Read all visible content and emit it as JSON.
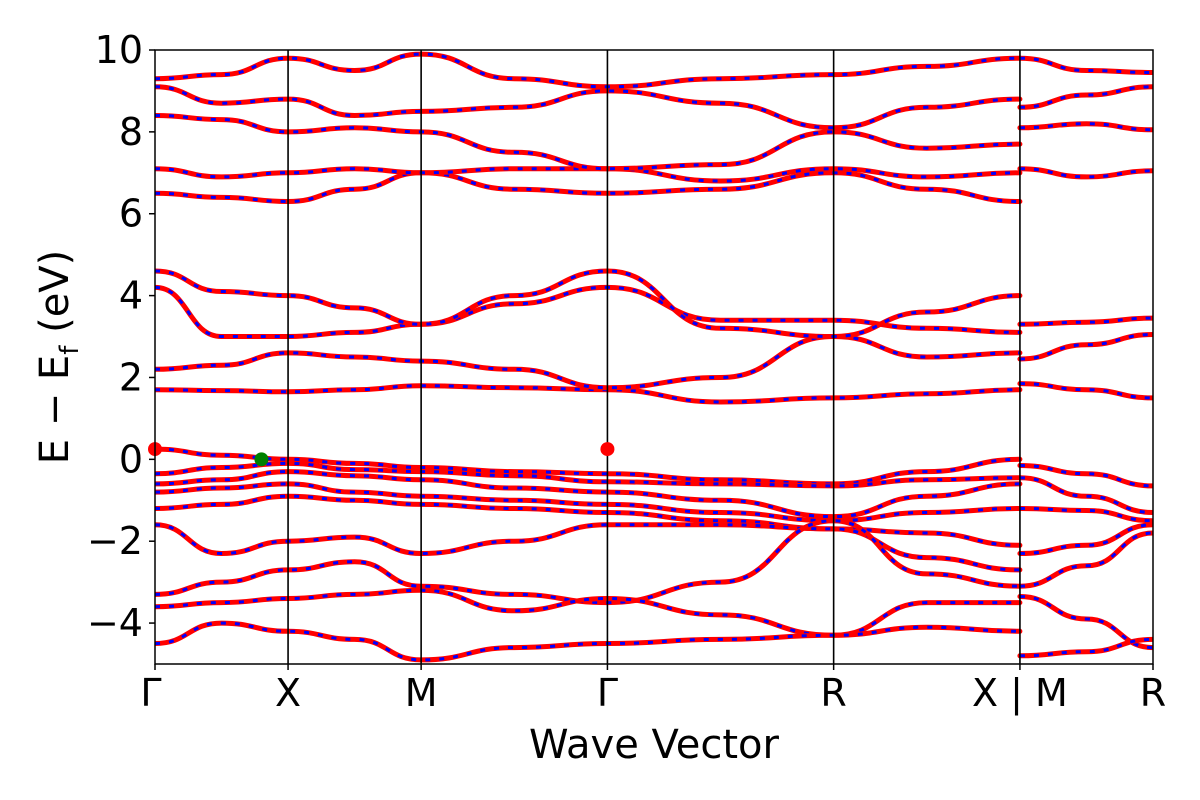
{
  "chart_data": {
    "type": "line",
    "title": "",
    "xlabel": "Wave Vector",
    "ylabel_parts": {
      "main": "E − E",
      "sub": "f",
      "unit": " (eV)"
    },
    "ylim": [
      -5,
      10
    ],
    "yticks": [
      -4,
      -2,
      0,
      2,
      4,
      6,
      8,
      10
    ],
    "ytick_labels": [
      "−4",
      "−2",
      "0",
      "2",
      "4",
      "6",
      "8",
      "10"
    ],
    "xlim": [
      0,
      7.5
    ],
    "kpoints": [
      {
        "label": "Γ",
        "x": 0
      },
      {
        "label": "X",
        "x": 1.0
      },
      {
        "label": "M",
        "x": 2.0
      },
      {
        "label": "Γ",
        "x": 3.4
      },
      {
        "label": "R",
        "x": 5.1
      },
      {
        "label": "X | M",
        "x": 6.5
      },
      {
        "label": "R",
        "x": 7.5
      }
    ],
    "colors": {
      "band_primary": "#ff0000",
      "band_secondary": "#0000ff",
      "vbm": "#008000",
      "cbm": "#ff0000",
      "frame": "#000000"
    },
    "extrema": {
      "vbm": {
        "x": 0.8,
        "y": 0.0
      },
      "cbm": [
        {
          "x": 0.0,
          "y": 0.25
        },
        {
          "x": 3.4,
          "y": 0.25
        }
      ]
    },
    "bands": [
      {
        "x": [
          0,
          0.5,
          1.0,
          1.5,
          2.0,
          2.7,
          3.4,
          4.25,
          5.1,
          5.8,
          6.5
        ],
        "y": [
          0.25,
          0.1,
          0.0,
          -0.1,
          -0.2,
          -0.3,
          -0.35,
          -0.5,
          -0.6,
          -0.3,
          0.0
        ]
      },
      {
        "x": [
          0,
          0.5,
          1.0,
          1.5,
          2.0,
          2.7,
          3.4,
          4.25,
          5.1,
          5.8,
          6.5
        ],
        "y": [
          -0.35,
          -0.2,
          -0.1,
          -0.25,
          -0.3,
          -0.4,
          -0.55,
          -0.6,
          -0.65,
          -0.5,
          -0.45
        ]
      },
      {
        "x": [
          0,
          0.5,
          1.0,
          1.5,
          2.0,
          2.7,
          3.4,
          4.25,
          5.1,
          5.8,
          6.5
        ],
        "y": [
          -0.6,
          -0.5,
          -0.3,
          -0.4,
          -0.5,
          -0.7,
          -0.8,
          -1.0,
          -1.4,
          -0.9,
          -0.6
        ]
      },
      {
        "x": [
          0,
          0.5,
          1.0,
          1.5,
          2.0,
          2.7,
          3.4,
          4.25,
          5.1,
          5.8,
          6.5
        ],
        "y": [
          -0.8,
          -0.7,
          -0.6,
          -0.8,
          -0.9,
          -1.0,
          -1.1,
          -1.3,
          -1.5,
          -1.3,
          -1.2
        ]
      },
      {
        "x": [
          0,
          0.5,
          1.0,
          1.5,
          2.0,
          2.7,
          3.4,
          4.25,
          5.1,
          5.8,
          6.5
        ],
        "y": [
          -1.2,
          -1.1,
          -0.9,
          -1.0,
          -1.1,
          -1.2,
          -1.3,
          -1.5,
          -1.7,
          -1.8,
          -2.1
        ]
      },
      {
        "x": [
          0,
          0.5,
          1.0,
          1.5,
          2.0,
          2.7,
          3.4,
          4.25,
          5.1,
          5.8,
          6.5
        ],
        "y": [
          -1.6,
          -2.3,
          -2.0,
          -1.9,
          -2.3,
          -2.0,
          -1.6,
          -1.6,
          -1.7,
          -2.4,
          -2.7
        ]
      },
      {
        "x": [
          0,
          0.5,
          1.0,
          1.5,
          2.0,
          2.7,
          3.4,
          4.25,
          5.1,
          5.8,
          6.5
        ],
        "y": [
          -3.3,
          -3.0,
          -2.7,
          -2.5,
          -3.1,
          -3.3,
          -3.5,
          -3.0,
          -1.5,
          -2.8,
          -3.1
        ]
      },
      {
        "x": [
          0,
          0.5,
          1.0,
          1.5,
          2.0,
          2.7,
          3.4,
          4.25,
          5.1,
          5.8,
          6.5
        ],
        "y": [
          -3.6,
          -3.5,
          -3.4,
          -3.3,
          -3.2,
          -3.7,
          -3.4,
          -3.8,
          -4.3,
          -3.5,
          -3.5
        ]
      },
      {
        "x": [
          0,
          0.5,
          1.0,
          1.5,
          2.0,
          2.7,
          3.4,
          4.25,
          5.1,
          5.8,
          6.5
        ],
        "y": [
          -4.5,
          -4.0,
          -4.2,
          -4.4,
          -4.9,
          -4.6,
          -4.5,
          -4.4,
          -4.3,
          -4.1,
          -4.2
        ]
      },
      {
        "x": [
          0,
          0.5,
          1.0,
          1.5,
          2.0,
          2.7,
          3.4,
          4.25,
          5.1,
          5.8,
          6.5
        ],
        "y": [
          1.7,
          1.68,
          1.65,
          1.7,
          1.8,
          1.75,
          1.7,
          1.4,
          1.5,
          1.6,
          1.7
        ]
      },
      {
        "x": [
          0,
          0.5,
          1.0,
          1.5,
          2.0,
          2.7,
          3.4,
          4.25,
          5.1,
          5.8,
          6.5
        ],
        "y": [
          2.2,
          2.3,
          2.6,
          2.5,
          2.4,
          2.2,
          1.75,
          2.0,
          3.0,
          2.5,
          2.6
        ]
      },
      {
        "x": [
          0,
          0.5,
          1.0,
          1.5,
          2.0,
          2.7,
          3.4,
          4.25,
          5.1,
          5.8,
          6.5
        ],
        "y": [
          4.2,
          3.0,
          3.0,
          3.1,
          3.3,
          3.8,
          4.2,
          3.4,
          3.4,
          3.2,
          3.1
        ]
      },
      {
        "x": [
          0,
          0.5,
          1.0,
          1.5,
          2.0,
          2.7,
          3.4,
          4.25,
          5.1,
          5.8,
          6.5
        ],
        "y": [
          4.6,
          4.1,
          4.0,
          3.7,
          3.3,
          4.0,
          4.6,
          3.2,
          3.0,
          3.6,
          4.0
        ]
      },
      {
        "x": [
          0,
          0.5,
          1.0,
          1.5,
          2.0,
          2.7,
          3.4,
          4.25,
          5.1,
          5.8,
          6.5
        ],
        "y": [
          6.5,
          6.4,
          6.3,
          6.6,
          7.0,
          6.6,
          6.5,
          6.6,
          7.0,
          6.6,
          6.3
        ]
      },
      {
        "x": [
          0,
          0.5,
          1.0,
          1.5,
          2.0,
          2.7,
          3.4,
          4.25,
          5.1,
          5.8,
          6.5
        ],
        "y": [
          7.1,
          6.9,
          7.0,
          7.1,
          7.0,
          7.1,
          7.1,
          6.8,
          7.1,
          6.9,
          7.0
        ]
      },
      {
        "x": [
          0,
          0.5,
          1.0,
          1.5,
          2.0,
          2.7,
          3.4,
          4.25,
          5.1,
          5.8,
          6.5
        ],
        "y": [
          8.4,
          8.3,
          8.0,
          8.1,
          8.0,
          7.5,
          7.1,
          7.2,
          8.0,
          7.6,
          7.7
        ]
      },
      {
        "x": [
          0,
          0.5,
          1.0,
          1.5,
          2.0,
          2.7,
          3.4,
          4.25,
          5.1,
          5.8,
          6.5
        ],
        "y": [
          9.1,
          8.7,
          8.8,
          8.4,
          8.5,
          8.6,
          9.0,
          8.7,
          8.1,
          8.6,
          8.8
        ]
      },
      {
        "x": [
          0,
          0.5,
          1.0,
          1.5,
          2.0,
          2.7,
          3.4,
          4.25,
          5.1,
          5.8,
          6.5
        ],
        "y": [
          9.3,
          9.4,
          9.8,
          9.5,
          9.9,
          9.3,
          9.1,
          9.3,
          9.4,
          9.6,
          9.8
        ]
      },
      {
        "x": [
          6.5,
          7.0,
          7.5
        ],
        "y": [
          -0.15,
          -0.35,
          -0.65
        ]
      },
      {
        "x": [
          6.5,
          7.0,
          7.5
        ],
        "y": [
          -0.45,
          -0.9,
          -1.3
        ]
      },
      {
        "x": [
          6.5,
          7.0,
          7.5
        ],
        "y": [
          -1.2,
          -1.25,
          -1.5
        ]
      },
      {
        "x": [
          6.5,
          7.0,
          7.5
        ],
        "y": [
          -2.3,
          -2.1,
          -1.6
        ]
      },
      {
        "x": [
          6.5,
          7.0,
          7.5
        ],
        "y": [
          -3.1,
          -2.6,
          -1.8
        ]
      },
      {
        "x": [
          6.5,
          7.0,
          7.5
        ],
        "y": [
          -3.35,
          -3.9,
          -4.6
        ]
      },
      {
        "x": [
          6.5,
          7.0,
          7.5
        ],
        "y": [
          -4.8,
          -4.7,
          -4.4
        ]
      },
      {
        "x": [
          6.5,
          7.0,
          7.5
        ],
        "y": [
          1.85,
          1.7,
          1.5
        ]
      },
      {
        "x": [
          6.5,
          7.0,
          7.5
        ],
        "y": [
          2.45,
          2.8,
          3.05
        ]
      },
      {
        "x": [
          6.5,
          7.0,
          7.5
        ],
        "y": [
          3.3,
          3.35,
          3.45
        ]
      },
      {
        "x": [
          6.5,
          7.0,
          7.5
        ],
        "y": [
          7.1,
          6.9,
          7.05
        ]
      },
      {
        "x": [
          6.5,
          7.0,
          7.5
        ],
        "y": [
          8.1,
          8.2,
          8.05
        ]
      },
      {
        "x": [
          6.5,
          7.0,
          7.5
        ],
        "y": [
          8.6,
          8.9,
          9.1
        ]
      },
      {
        "x": [
          6.5,
          7.0,
          7.5
        ],
        "y": [
          9.8,
          9.5,
          9.45
        ]
      }
    ]
  }
}
